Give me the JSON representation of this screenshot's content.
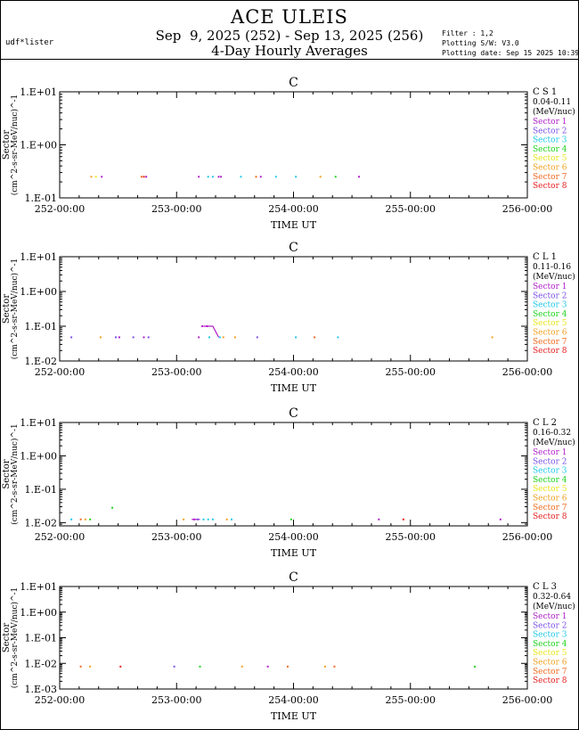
{
  "header": {
    "title": "ACE ULEIS",
    "date_range": "Sep  9, 2025 (252) - Sep 13, 2025 (256)",
    "subtitle": "4-Day Hourly Averages",
    "user": "udf*lister",
    "filter": "Filter : 1,2",
    "software": "Plotting S/W: V3.0",
    "plot_date": "Plotting date: Sep 15 2025 10:39"
  },
  "legend": {
    "sectors": [
      {
        "name": "Sector 1",
        "color": "#b01ec8"
      },
      {
        "name": "Sector 2",
        "color": "#7a50e8"
      },
      {
        "name": "Sector 3",
        "color": "#1ec8e8"
      },
      {
        "name": "Sector 4",
        "color": "#1ed21e"
      },
      {
        "name": "Sector 5",
        "color": "#e6e61e"
      },
      {
        "name": "Sector 6",
        "color": "#f0a01e"
      },
      {
        "name": "Sector 7",
        "color": "#f06a1e"
      },
      {
        "name": "Sector 8",
        "color": "#e61e1e"
      }
    ]
  },
  "chart_data": [
    {
      "type": "scatter",
      "panel_title": "C",
      "channel": "C S 1",
      "energy_range": "0.04-0.11",
      "energy_unit": "(MeV/nuc)",
      "ylabel": "Sector",
      "yunit": "(cm^2-s-sr-MeV/nuc)^-1",
      "xlabel": "TIME UT",
      "xlim": [
        252,
        256
      ],
      "x_ticks": [
        "252-00:00",
        "253-00:00",
        "254-00:00",
        "255-00:00",
        "256-00:00"
      ],
      "ylim": [
        0.1,
        10
      ],
      "y_ticks": [
        "1.E+01",
        "1.E+00",
        "1.E-01"
      ],
      "y_tick_values": [
        10,
        1,
        0.1
      ],
      "points": [
        {
          "x": 252.27,
          "y": 0.25,
          "s": 6
        },
        {
          "x": 252.31,
          "y": 0.25,
          "s": 5
        },
        {
          "x": 252.36,
          "y": 0.25,
          "s": 1
        },
        {
          "x": 252.7,
          "y": 0.25,
          "s": 7
        },
        {
          "x": 252.72,
          "y": 0.25,
          "s": 8
        },
        {
          "x": 252.74,
          "y": 0.25,
          "s": 1
        },
        {
          "x": 253.19,
          "y": 0.25,
          "s": 1
        },
        {
          "x": 253.27,
          "y": 0.25,
          "s": 3
        },
        {
          "x": 253.31,
          "y": 0.25,
          "s": 3
        },
        {
          "x": 253.36,
          "y": 0.25,
          "s": 1
        },
        {
          "x": 253.38,
          "y": 0.25,
          "s": 1
        },
        {
          "x": 253.55,
          "y": 0.25,
          "s": 3
        },
        {
          "x": 253.68,
          "y": 0.25,
          "s": 7
        },
        {
          "x": 253.72,
          "y": 0.25,
          "s": 1
        },
        {
          "x": 253.85,
          "y": 0.25,
          "s": 3
        },
        {
          "x": 254.02,
          "y": 0.25,
          "s": 3
        },
        {
          "x": 254.23,
          "y": 0.25,
          "s": 6
        },
        {
          "x": 254.36,
          "y": 0.25,
          "s": 4
        },
        {
          "x": 254.56,
          "y": 0.25,
          "s": 1
        }
      ],
      "lines": []
    },
    {
      "type": "scatter",
      "panel_title": "C",
      "channel": "C L 1",
      "energy_range": "0.11-0.16",
      "energy_unit": "(MeV/nuc)",
      "ylabel": "Sector",
      "yunit": "(cm^2-s-sr-MeV/nuc)^-1",
      "xlabel": "TIME UT",
      "xlim": [
        252,
        256
      ],
      "x_ticks": [
        "252-00:00",
        "253-00:00",
        "254-00:00",
        "255-00:00",
        "256-00:00"
      ],
      "ylim": [
        0.01,
        10
      ],
      "y_ticks": [
        "1.E+01",
        "1.E+00",
        "1.E-01",
        "1.E-02"
      ],
      "y_tick_values": [
        10,
        1,
        0.1,
        0.01
      ],
      "points": [
        {
          "x": 252.1,
          "y": 0.048,
          "s": 2
        },
        {
          "x": 252.48,
          "y": 0.048,
          "s": 2
        },
        {
          "x": 252.51,
          "y": 0.048,
          "s": 1
        },
        {
          "x": 252.35,
          "y": 0.048,
          "s": 6
        },
        {
          "x": 252.63,
          "y": 0.048,
          "s": 2
        },
        {
          "x": 252.72,
          "y": 0.048,
          "s": 1
        },
        {
          "x": 252.76,
          "y": 0.048,
          "s": 2
        },
        {
          "x": 253.19,
          "y": 0.048,
          "s": 1
        },
        {
          "x": 253.28,
          "y": 0.048,
          "s": 3
        },
        {
          "x": 253.22,
          "y": 0.1,
          "s": 1
        },
        {
          "x": 253.26,
          "y": 0.1,
          "s": 1
        },
        {
          "x": 253.37,
          "y": 0.048,
          "s": 3
        },
        {
          "x": 253.4,
          "y": 0.048,
          "s": 6
        },
        {
          "x": 253.5,
          "y": 0.048,
          "s": 6
        },
        {
          "x": 253.69,
          "y": 0.048,
          "s": 2
        },
        {
          "x": 254.02,
          "y": 0.048,
          "s": 3
        },
        {
          "x": 254.18,
          "y": 0.048,
          "s": 7
        },
        {
          "x": 254.38,
          "y": 0.048,
          "s": 3
        },
        {
          "x": 255.7,
          "y": 0.048,
          "s": 6
        }
      ],
      "lines": [
        {
          "s": 1,
          "x": [
            253.23,
            253.31,
            253.36
          ],
          "y": [
            0.1,
            0.1,
            0.048
          ]
        }
      ]
    },
    {
      "type": "scatter",
      "panel_title": "C",
      "channel": "C L 2",
      "energy_range": "0.16-0.32",
      "energy_unit": "(MeV/nuc)",
      "ylabel": "Sector",
      "yunit": "(cm^2-s-sr-MeV/nuc)^-1",
      "xlabel": "TIME UT",
      "xlim": [
        252,
        256
      ],
      "x_ticks": [
        "252-00:00",
        "253-00:00",
        "254-00:00",
        "255-00:00",
        "256-00:00"
      ],
      "ylim": [
        0.008,
        10
      ],
      "y_ticks": [
        "1.E+01",
        "1.E+00",
        "1.E-01",
        "1.E-02"
      ],
      "y_tick_values": [
        10,
        1,
        0.1,
        0.01
      ],
      "points": [
        {
          "x": 252.1,
          "y": 0.0125,
          "s": 3
        },
        {
          "x": 252.18,
          "y": 0.0125,
          "s": 7
        },
        {
          "x": 252.22,
          "y": 0.0125,
          "s": 6
        },
        {
          "x": 252.26,
          "y": 0.0125,
          "s": 4
        },
        {
          "x": 252.45,
          "y": 0.028,
          "s": 4
        },
        {
          "x": 253.06,
          "y": 0.0125,
          "s": 6
        },
        {
          "x": 253.15,
          "y": 0.0125,
          "s": 1
        },
        {
          "x": 253.18,
          "y": 0.0125,
          "s": 2
        },
        {
          "x": 253.23,
          "y": 0.0125,
          "s": 3
        },
        {
          "x": 253.27,
          "y": 0.0125,
          "s": 3
        },
        {
          "x": 253.31,
          "y": 0.0125,
          "s": 3
        },
        {
          "x": 253.43,
          "y": 0.0125,
          "s": 6
        },
        {
          "x": 253.47,
          "y": 0.0125,
          "s": 3
        },
        {
          "x": 253.98,
          "y": 0.0125,
          "s": 4
        },
        {
          "x": 254.73,
          "y": 0.0125,
          "s": 1
        },
        {
          "x": 254.94,
          "y": 0.0125,
          "s": 8
        },
        {
          "x": 255.77,
          "y": 0.0125,
          "s": 1
        }
      ],
      "lines": [
        {
          "s": 1,
          "x": [
            253.13,
            253.2
          ],
          "y": [
            0.0125,
            0.0125
          ]
        }
      ]
    },
    {
      "type": "scatter",
      "panel_title": "C",
      "channel": "C L 3",
      "energy_range": "0.32-0.64",
      "energy_unit": "(MeV/nuc)",
      "ylabel": "Sector",
      "yunit": "(cm^2-s-sr-MeV/nuc)^-1",
      "xlabel": "TIME UT",
      "xlim": [
        252,
        256
      ],
      "x_ticks": [
        "252-00:00",
        "253-00:00",
        "254-00:00",
        "255-00:00",
        "256-00:00"
      ],
      "ylim": [
        0.001,
        10
      ],
      "y_ticks": [
        "1.E+01",
        "1.E+00",
        "1.E-01",
        "1.E-02",
        "1.E-03"
      ],
      "y_tick_values": [
        10,
        1,
        0.1,
        0.01,
        0.001
      ],
      "points": [
        {
          "x": 252.18,
          "y": 0.0075,
          "s": 7
        },
        {
          "x": 252.26,
          "y": 0.0075,
          "s": 6
        },
        {
          "x": 252.52,
          "y": 0.0075,
          "s": 8
        },
        {
          "x": 252.98,
          "y": 0.0075,
          "s": 2
        },
        {
          "x": 253.2,
          "y": 0.0075,
          "s": 4
        },
        {
          "x": 253.56,
          "y": 0.0075,
          "s": 6
        },
        {
          "x": 253.78,
          "y": 0.0075,
          "s": 1
        },
        {
          "x": 253.95,
          "y": 0.0075,
          "s": 7
        },
        {
          "x": 254.27,
          "y": 0.0075,
          "s": 6
        },
        {
          "x": 254.35,
          "y": 0.0075,
          "s": 7
        },
        {
          "x": 255.55,
          "y": 0.0075,
          "s": 4
        }
      ],
      "lines": []
    }
  ]
}
